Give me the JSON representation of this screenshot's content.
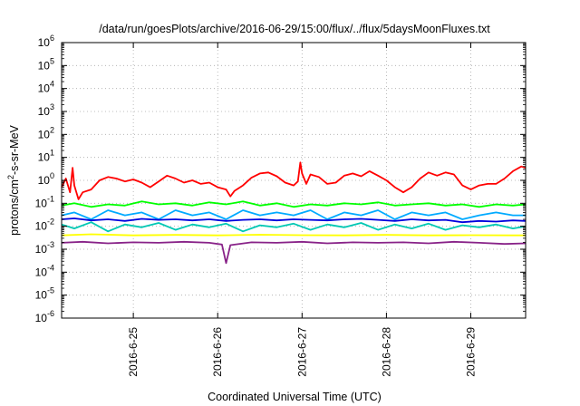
{
  "chart_data": {
    "type": "line",
    "title": "/data/run/goesPlots/archive/2016-06-29/15:00/flux/../flux/5daysMoonFluxes.txt",
    "xlabel": "Coordinated Universal Time (UTC)",
    "ylabel": "protons/cm2-s-sr-MeV",
    "ylabel_parts": [
      "protons/cm",
      "2",
      "-s-sr-MeV"
    ],
    "y_scale": "log",
    "ylim": [
      1e-06,
      1000000.0
    ],
    "y_ticks": [
      {
        "value": -6,
        "base": "10",
        "exp": "-6"
      },
      {
        "value": -5,
        "base": "10",
        "exp": "-5"
      },
      {
        "value": -4,
        "base": "10",
        "exp": "-4"
      },
      {
        "value": -3,
        "base": "10",
        "exp": "-3"
      },
      {
        "value": -2,
        "base": "10",
        "exp": "-2"
      },
      {
        "value": -1,
        "base": "10",
        "exp": "-1"
      },
      {
        "value": 0,
        "base": "10",
        "exp": "0"
      },
      {
        "value": 1,
        "base": "10",
        "exp": "1"
      },
      {
        "value": 2,
        "base": "10",
        "exp": "2"
      },
      {
        "value": 3,
        "base": "10",
        "exp": "3"
      },
      {
        "value": 4,
        "base": "10",
        "exp": "4"
      },
      {
        "value": 5,
        "base": "10",
        "exp": "5"
      },
      {
        "value": 6,
        "base": "10",
        "exp": "6"
      }
    ],
    "x_unit": "days from 2016-06-24 00:00 UTC",
    "xlim": [
      0.15,
      5.65
    ],
    "x_ticks": [
      {
        "value": 1,
        "label": "2016-6-25"
      },
      {
        "value": 2,
        "label": "2016-6-26"
      },
      {
        "value": 3,
        "label": "2016-6-27"
      },
      {
        "value": 4,
        "label": "2016-6-28"
      },
      {
        "value": 5,
        "label": "2016-6-29"
      }
    ],
    "grid": true,
    "series": [
      {
        "color": "#ff0000",
        "x": [
          0.15,
          0.2,
          0.25,
          0.28,
          0.3,
          0.35,
          0.4,
          0.5,
          0.6,
          0.7,
          0.8,
          0.9,
          1.0,
          1.1,
          1.2,
          1.3,
          1.4,
          1.5,
          1.6,
          1.7,
          1.8,
          1.9,
          2.0,
          2.1,
          2.15,
          2.2,
          2.3,
          2.4,
          2.5,
          2.6,
          2.7,
          2.8,
          2.9,
          2.95,
          2.98,
          3.0,
          3.05,
          3.1,
          3.2,
          3.3,
          3.4,
          3.5,
          3.6,
          3.7,
          3.8,
          3.9,
          4.0,
          4.1,
          4.2,
          4.3,
          4.4,
          4.5,
          4.6,
          4.7,
          4.8,
          4.9,
          5.0,
          5.1,
          5.2,
          5.3,
          5.4,
          5.5,
          5.6,
          5.65
        ],
        "y": [
          0.5,
          1.2,
          0.3,
          3.5,
          0.6,
          0.15,
          0.3,
          0.4,
          1.0,
          1.4,
          1.2,
          0.9,
          1.1,
          0.8,
          0.5,
          0.9,
          1.6,
          1.2,
          0.8,
          1.0,
          0.7,
          0.8,
          0.5,
          0.4,
          0.2,
          0.35,
          0.6,
          1.3,
          2.0,
          2.2,
          1.5,
          0.8,
          0.6,
          0.9,
          6.0,
          2.0,
          0.7,
          1.8,
          1.4,
          0.7,
          0.8,
          1.6,
          2.0,
          1.5,
          2.5,
          1.6,
          1.0,
          0.5,
          0.3,
          0.5,
          1.2,
          2.2,
          1.6,
          2.2,
          1.8,
          0.6,
          0.4,
          0.6,
          0.7,
          0.7,
          1.2,
          2.5,
          4.0,
          3.5
        ]
      },
      {
        "color": "#00ff00",
        "x": [
          0.15,
          0.3,
          0.5,
          0.7,
          0.9,
          1.1,
          1.3,
          1.5,
          1.7,
          1.9,
          2.1,
          2.3,
          2.5,
          2.7,
          2.9,
          3.1,
          3.3,
          3.5,
          3.7,
          3.9,
          4.1,
          4.3,
          4.5,
          4.7,
          4.9,
          5.1,
          5.3,
          5.5,
          5.65
        ],
        "y": [
          0.08,
          0.1,
          0.07,
          0.09,
          0.08,
          0.12,
          0.09,
          0.1,
          0.08,
          0.11,
          0.09,
          0.12,
          0.08,
          0.1,
          0.07,
          0.09,
          0.08,
          0.1,
          0.09,
          0.11,
          0.08,
          0.09,
          0.1,
          0.08,
          0.09,
          0.07,
          0.09,
          0.08,
          0.09
        ]
      },
      {
        "color": "#00aaff",
        "x": [
          0.15,
          0.3,
          0.5,
          0.7,
          0.9,
          1.1,
          1.3,
          1.5,
          1.7,
          1.9,
          2.1,
          2.3,
          2.5,
          2.7,
          2.9,
          3.1,
          3.3,
          3.5,
          3.7,
          3.9,
          4.1,
          4.3,
          4.5,
          4.7,
          4.9,
          5.1,
          5.3,
          5.5,
          5.65
        ],
        "y": [
          0.03,
          0.04,
          0.02,
          0.05,
          0.03,
          0.04,
          0.02,
          0.05,
          0.03,
          0.04,
          0.02,
          0.05,
          0.03,
          0.04,
          0.03,
          0.05,
          0.02,
          0.04,
          0.03,
          0.05,
          0.02,
          0.04,
          0.03,
          0.04,
          0.02,
          0.03,
          0.04,
          0.03,
          0.03
        ]
      },
      {
        "color": "#00c8b4",
        "x": [
          0.15,
          0.3,
          0.5,
          0.7,
          0.9,
          1.1,
          1.3,
          1.5,
          1.7,
          1.9,
          2.1,
          2.3,
          2.5,
          2.7,
          2.9,
          3.1,
          3.3,
          3.5,
          3.7,
          3.9,
          4.1,
          4.3,
          4.5,
          4.7,
          4.9,
          5.1,
          5.3,
          5.5,
          5.65
        ],
        "y": [
          0.012,
          0.008,
          0.015,
          0.006,
          0.012,
          0.009,
          0.014,
          0.007,
          0.012,
          0.009,
          0.013,
          0.006,
          0.011,
          0.009,
          0.013,
          0.007,
          0.012,
          0.009,
          0.014,
          0.007,
          0.012,
          0.008,
          0.013,
          0.007,
          0.011,
          0.009,
          0.012,
          0.008,
          0.01
        ]
      },
      {
        "color": "#0000dd",
        "x": [
          0.15,
          0.3,
          0.5,
          0.7,
          0.9,
          1.1,
          1.3,
          1.5,
          1.7,
          1.9,
          2.1,
          2.3,
          2.5,
          2.7,
          2.9,
          3.1,
          3.3,
          3.5,
          3.7,
          3.9,
          4.1,
          4.3,
          4.5,
          4.7,
          4.9,
          5.1,
          5.3,
          5.5,
          5.65
        ],
        "y": [
          0.02,
          0.022,
          0.018,
          0.02,
          0.017,
          0.021,
          0.019,
          0.02,
          0.018,
          0.02,
          0.017,
          0.019,
          0.02,
          0.018,
          0.02,
          0.019,
          0.018,
          0.02,
          0.021,
          0.019,
          0.017,
          0.02,
          0.018,
          0.019,
          0.015,
          0.017,
          0.016,
          0.018,
          0.017
        ]
      },
      {
        "color": "#ffff00",
        "x": [
          0.15,
          0.5,
          1.0,
          1.5,
          2.0,
          2.5,
          3.0,
          3.5,
          4.0,
          4.5,
          5.0,
          5.5,
          5.65
        ],
        "y": [
          0.004,
          0.0045,
          0.004,
          0.0042,
          0.004,
          0.0043,
          0.0041,
          0.004,
          0.0042,
          0.004,
          0.0041,
          0.004,
          0.004
        ]
      },
      {
        "color": "#882288",
        "x": [
          0.15,
          0.4,
          0.7,
          1.0,
          1.3,
          1.6,
          1.9,
          2.05,
          2.1,
          2.15,
          2.4,
          2.7,
          3.0,
          3.3,
          3.6,
          3.9,
          4.2,
          4.5,
          4.8,
          5.1,
          5.4,
          5.65
        ],
        "y": [
          0.0019,
          0.0021,
          0.0018,
          0.002,
          0.0019,
          0.0021,
          0.0019,
          0.0016,
          0.00025,
          0.0015,
          0.002,
          0.0019,
          0.0021,
          0.0018,
          0.002,
          0.0019,
          0.002,
          0.0018,
          0.0021,
          0.0019,
          0.0017,
          0.0018
        ]
      }
    ]
  }
}
